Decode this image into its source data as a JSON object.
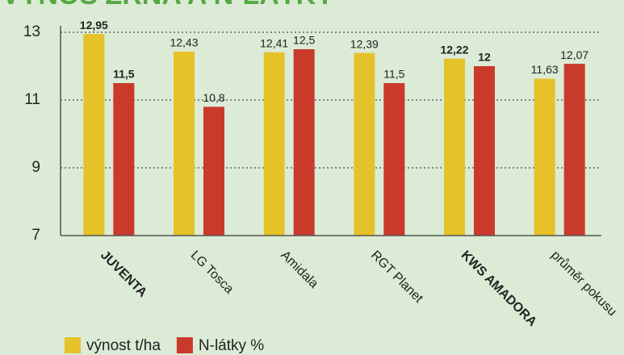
{
  "chart_data": {
    "type": "bar",
    "title": "VÝNOS ZRNA A N-LÁTKY",
    "categories": [
      "JUVENTA",
      "LG Tosca",
      "Amidala",
      "RGT Planet",
      "KWS AMADORA",
      "průměr pokusu"
    ],
    "bold": [
      true,
      false,
      false,
      false,
      true,
      false
    ],
    "series": [
      {
        "name": "výnost t/ha",
        "color": "#e5c22a",
        "values": [
          12.95,
          12.43,
          12.41,
          12.39,
          12.22,
          11.63
        ],
        "value_labels": [
          "12,95",
          "12,43",
          "12,41",
          "12,39",
          "12,22",
          "11,63"
        ]
      },
      {
        "name": "N-látky %",
        "color": "#c93a2b",
        "values": [
          11.5,
          10.8,
          12.5,
          11.5,
          12,
          12.07
        ],
        "value_labels": [
          "11,5",
          "10,8",
          "12,5",
          "11,5",
          "12",
          "12,07"
        ]
      }
    ],
    "ylim": [
      7,
      13
    ],
    "yticks": [
      7,
      9,
      11,
      13
    ],
    "grid": true
  }
}
